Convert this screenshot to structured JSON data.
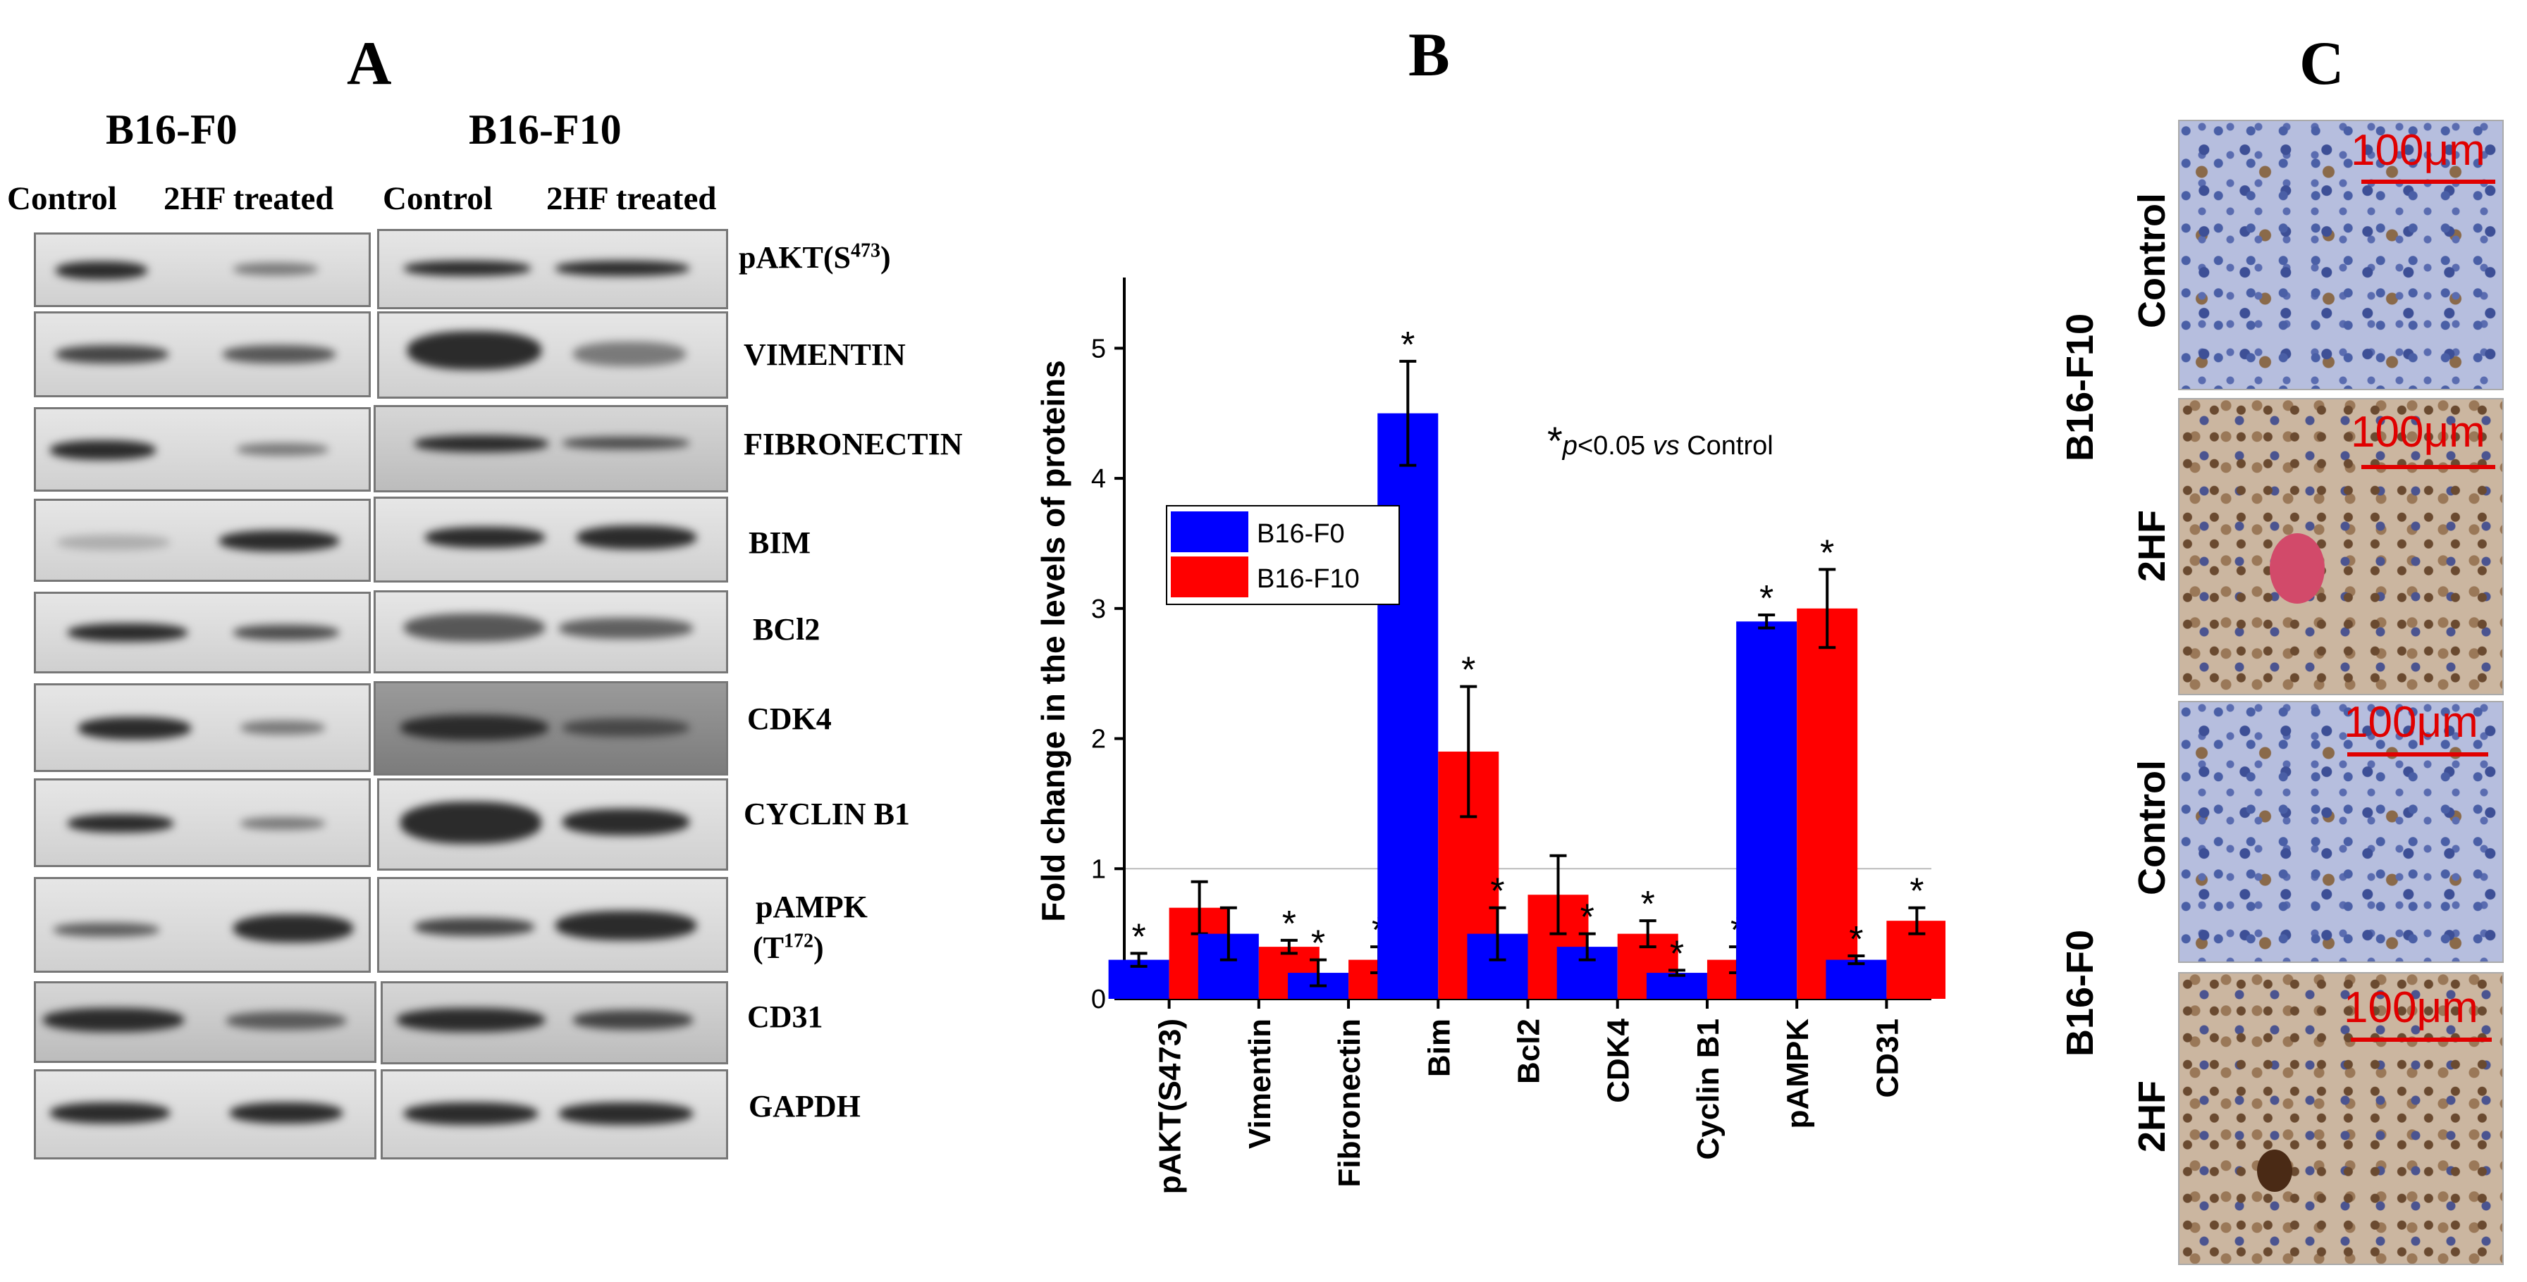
{
  "panels": {
    "a": "A",
    "b": "B",
    "c": "C"
  },
  "panel_a": {
    "cell_lines": [
      "B16-F0",
      "B16-F10"
    ],
    "col_headers": [
      "Control",
      "2HF treated",
      "Control",
      "2HF treated"
    ],
    "proteins": [
      "pAKT(S",
      "VIMENTIN",
      "FIBRONECTIN",
      "BIM",
      "BCl2",
      "CDK4",
      "CYCLIN B1",
      "pAMPK",
      "CD31",
      "GAPDH"
    ],
    "pakt_sup": "473",
    "pakt_close": ")",
    "pampk_line2": "(T",
    "pampk_sup": "172",
    "pampk_close": ")"
  },
  "chart_data": {
    "type": "bar",
    "ylabel": "Fold change in the levels of proteins",
    "ylim": [
      0,
      5.5
    ],
    "yticks": [
      0,
      1,
      2,
      3,
      4,
      5
    ],
    "reference_line": 1,
    "categories": [
      "pAKT(S473)",
      "Vimentin",
      "Fibronectin",
      "Bim",
      "Bcl2",
      "CDK4",
      "Cyclin B1",
      "pAMPK",
      "CD31"
    ],
    "series": [
      {
        "name": "B16-F0",
        "color": "#0000ff",
        "values": [
          0.3,
          0.5,
          0.2,
          4.5,
          0.5,
          0.4,
          0.2,
          2.9,
          0.3
        ],
        "errors": [
          0.05,
          0.2,
          0.1,
          0.4,
          0.2,
          0.1,
          0.02,
          0.05,
          0.03
        ],
        "significant": [
          true,
          false,
          true,
          true,
          true,
          true,
          true,
          true,
          true
        ]
      },
      {
        "name": "B16-F10",
        "color": "#ff0000",
        "values": [
          0.7,
          0.4,
          0.3,
          1.9,
          0.8,
          0.5,
          0.3,
          3.0,
          0.6
        ],
        "errors": [
          0.2,
          0.05,
          0.1,
          0.5,
          0.3,
          0.1,
          0.1,
          0.3,
          0.1
        ],
        "significant": [
          false,
          true,
          true,
          true,
          false,
          true,
          true,
          true,
          true
        ]
      }
    ],
    "annotation": {
      "star": "*",
      "p_text": "p",
      "rest": "<0.05 ",
      "vs": "vs",
      "control": " Control"
    },
    "legend_position": "upper-left"
  },
  "panel_c": {
    "scale_label": "100μm",
    "row_labels": [
      "Control",
      "2HF",
      "Control",
      "2HF"
    ],
    "group_labels": [
      "B16-F10",
      "B16-F0"
    ]
  }
}
